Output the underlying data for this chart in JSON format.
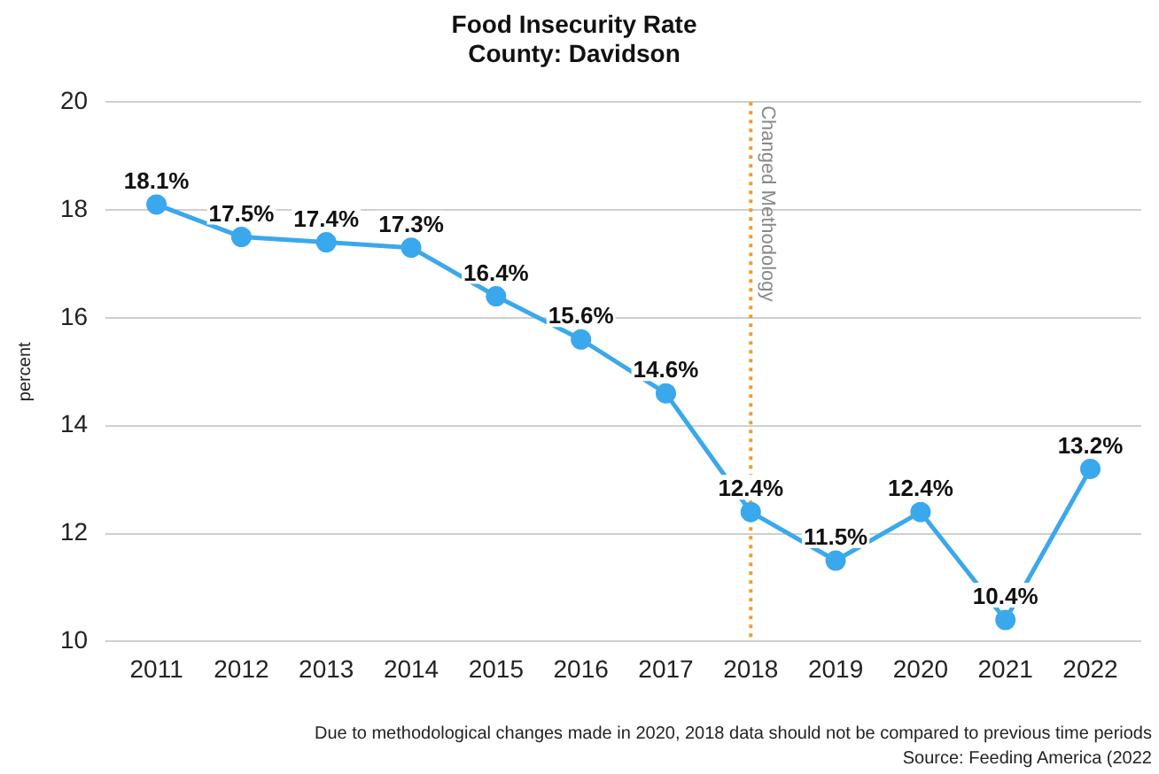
{
  "chart_data": {
    "type": "line",
    "title": "Food Insecurity Rate",
    "subtitle": "County: Davidson",
    "ylabel": "percent",
    "x": [
      2011,
      2012,
      2013,
      2014,
      2015,
      2016,
      2017,
      2018,
      2019,
      2020,
      2021,
      2022
    ],
    "series": [
      {
        "color": "#3aa8ec",
        "values": [
          18.1,
          17.5,
          17.4,
          17.3,
          16.4,
          15.6,
          14.6,
          12.4,
          11.5,
          12.4,
          10.4,
          13.2
        ],
        "value_labels": [
          "18.1%",
          "17.5%",
          "17.4%",
          "17.3%",
          "16.4%",
          "15.6%",
          "14.6%",
          "12.4%",
          "11.5%",
          "12.4%",
          "10.4%",
          "13.2%"
        ]
      }
    ],
    "xlim": [
      2010.4,
      2022.6
    ],
    "xticks": [
      2011,
      2012,
      2013,
      2014,
      2015,
      2016,
      2017,
      2018,
      2019,
      2020,
      2021,
      2022
    ],
    "ylim": [
      10,
      20
    ],
    "yticks": [
      10,
      12,
      14,
      16,
      18,
      20
    ],
    "grid": "y",
    "legend": false,
    "marker": "circle",
    "line_style": "solid",
    "ref_lines": [
      {
        "axis": "x",
        "value": 2018,
        "label": "Changed Methodology",
        "color": "#e8a030",
        "line_style": "dotted"
      }
    ],
    "annotations": [
      "Due to methodological changes made in 2020, 2018 data should not be compared to previous time periods",
      "Source: Feeding America (2022"
    ]
  }
}
